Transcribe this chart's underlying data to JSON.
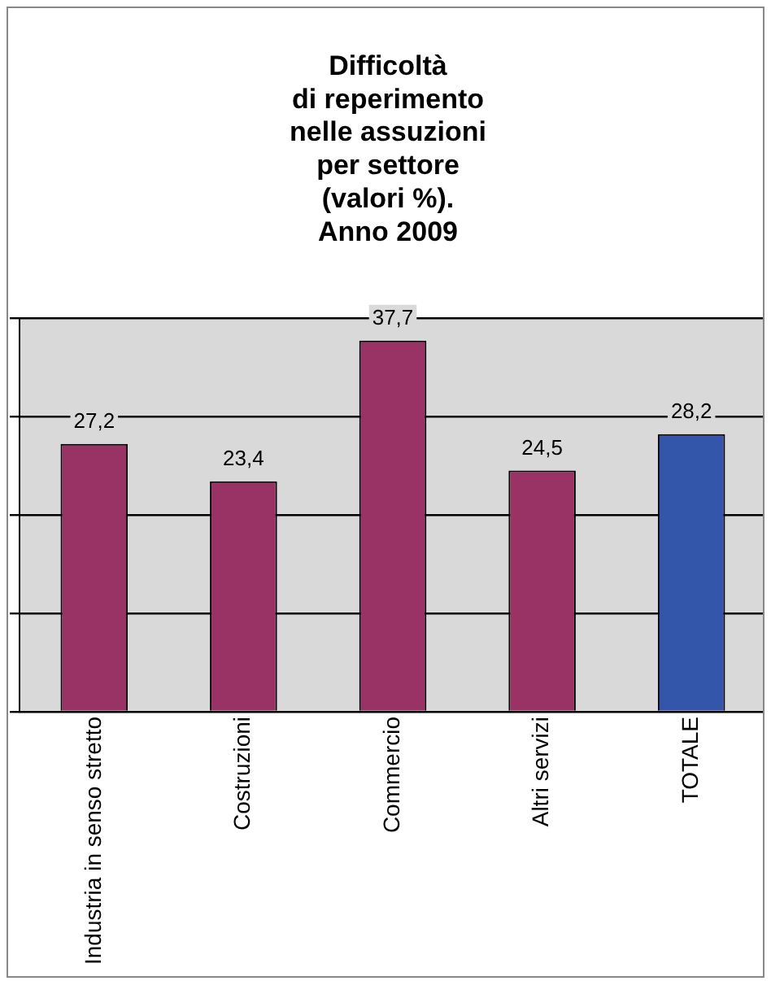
{
  "chart_data": {
    "type": "bar",
    "title": "Difficoltà\ndi reperimento\nnelle assuzioni\nper settore\n(valori %).\nAnno 2009",
    "categories": [
      "Industria in senso stretto",
      "Costruzioni",
      "Commercio",
      "Altri servizi",
      "TOTALE"
    ],
    "values": [
      27.2,
      23.4,
      37.7,
      24.5,
      28.2
    ],
    "colors": [
      "#993366",
      "#993366",
      "#993366",
      "#993366",
      "#3355aa"
    ],
    "value_labels": [
      "27,2",
      "23,4",
      "37,7",
      "24,5",
      "28,2"
    ],
    "grid": "y",
    "legend": false
  }
}
